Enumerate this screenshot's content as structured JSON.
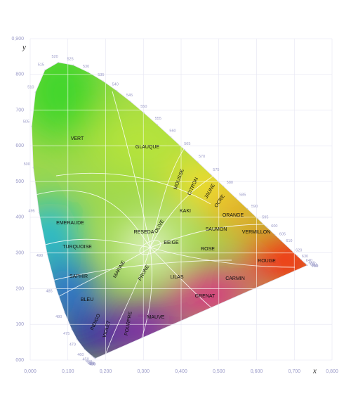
{
  "chart_data": {
    "type": "chromaticity",
    "x_label": "x",
    "y_label": "y",
    "xlim": [
      0,
      0.8
    ],
    "ylim": [
      0,
      0.9
    ],
    "xticks": [
      {
        "value": 0,
        "label": "0,000"
      },
      {
        "value": 0.1,
        "label": "0,100"
      },
      {
        "value": 0.2,
        "label": "0,200"
      },
      {
        "value": 0.3,
        "label": "0,300"
      },
      {
        "value": 0.4,
        "label": "0,400"
      },
      {
        "value": 0.5,
        "label": "0,500"
      },
      {
        "value": 0.6,
        "label": "0,600"
      },
      {
        "value": 0.7,
        "label": "0,700"
      },
      {
        "value": 0.8,
        "label": "0,800"
      }
    ],
    "yticks": [
      {
        "value": 0,
        "label": "000"
      },
      {
        "value": 0.1,
        "label": "100"
      },
      {
        "value": 0.2,
        "label": "200"
      },
      {
        "value": 0.3,
        "label": "300"
      },
      {
        "value": 0.4,
        "label": "400"
      },
      {
        "value": 0.5,
        "label": "500"
      },
      {
        "value": 0.6,
        "label": "600"
      },
      {
        "value": 0.7,
        "label": "700"
      },
      {
        "value": 0.8,
        "label": "800"
      },
      {
        "value": 0.9,
        "label": "0,900"
      }
    ],
    "grid": true,
    "locus": {
      "wavelengths": [
        400,
        410,
        420,
        430,
        440,
        450,
        460,
        470,
        475,
        480,
        485,
        490,
        495,
        500,
        505,
        510,
        515,
        520,
        525,
        530,
        535,
        540,
        545,
        550,
        555,
        560,
        565,
        570,
        575,
        580,
        585,
        590,
        595,
        600,
        605,
        610,
        620,
        630,
        640,
        650,
        660,
        680,
        700
      ],
      "x": [
        0.1733,
        0.1726,
        0.1714,
        0.1689,
        0.1644,
        0.1566,
        0.144,
        0.1241,
        0.1096,
        0.0913,
        0.0687,
        0.0454,
        0.0235,
        0.0082,
        0.0039,
        0.0139,
        0.0389,
        0.0743,
        0.1142,
        0.1547,
        0.1929,
        0.2296,
        0.2658,
        0.3016,
        0.3373,
        0.3731,
        0.4087,
        0.4441,
        0.4788,
        0.5125,
        0.5448,
        0.5752,
        0.6029,
        0.627,
        0.6482,
        0.6658,
        0.6915,
        0.7079,
        0.719,
        0.726,
        0.73,
        0.7334,
        0.7347
      ],
      "y": [
        0.0048,
        0.0048,
        0.0051,
        0.0069,
        0.0109,
        0.0177,
        0.0297,
        0.0578,
        0.0868,
        0.1327,
        0.2007,
        0.295,
        0.4127,
        0.5384,
        0.6548,
        0.7502,
        0.812,
        0.8338,
        0.8262,
        0.8059,
        0.7816,
        0.7543,
        0.7243,
        0.6923,
        0.6589,
        0.6245,
        0.5896,
        0.5547,
        0.5202,
        0.4866,
        0.4544,
        0.4242,
        0.3965,
        0.3725,
        0.3514,
        0.334,
        0.3083,
        0.292,
        0.2809,
        0.274,
        0.27,
        0.2666,
        0.2653
      ]
    },
    "regions": [
      "VERT",
      "GLAUQUE",
      "MOUSSE",
      "CITRON",
      "JAUNE",
      "OCRE",
      "KAKI",
      "ORANGE",
      "RESEDA",
      "OLIVE",
      "SAUMON",
      "VERMILLON",
      "EMERAUDE",
      "BEIGE",
      "TURQUOISE",
      "ROSE",
      "ROUGE",
      "MARINE",
      "PRUNE",
      "SAPHIR",
      "LILAS",
      "CARMIN",
      "BLEU",
      "GRENAT",
      "MAUVE",
      "INDIGO",
      "VIOLET",
      "POURPRE"
    ]
  }
}
